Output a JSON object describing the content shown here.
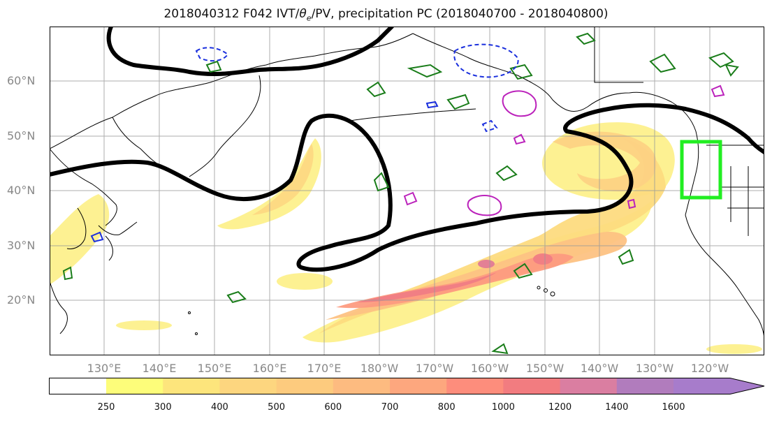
{
  "figure": {
    "title_prefix": "2018040312 F042 IVT/",
    "title_theta": "θ",
    "title_theta_sub": "e",
    "title_suffix": "/PV, precipitation PC (2018040700 - 2018040800)"
  },
  "axes": {
    "lat_labels": [
      "60°N",
      "50°N",
      "40°N",
      "30°N",
      "20°N"
    ],
    "lon_labels": [
      "130°E",
      "140°E",
      "150°E",
      "160°E",
      "170°E",
      "180°W",
      "170°W",
      "160°W",
      "150°W",
      "140°W",
      "130°W",
      "120°W"
    ]
  },
  "colorbar": {
    "levels": [
      "250",
      "300",
      "400",
      "500",
      "600",
      "700",
      "800",
      "1000",
      "1200",
      "1400",
      "1600"
    ],
    "colors": [
      "#fdfd7a",
      "#fde57c",
      "#fdd67f",
      "#fdcb7e",
      "#fdbb80",
      "#fda77e",
      "#fd8d7c",
      "#f27c80",
      "#da7ea1",
      "#b17cbd",
      "#a77ccb"
    ]
  },
  "highlight_box": {
    "color": "#22ee22",
    "lat_range": [
      39,
      49
    ],
    "lon_range": [
      -127,
      -120
    ]
  }
}
